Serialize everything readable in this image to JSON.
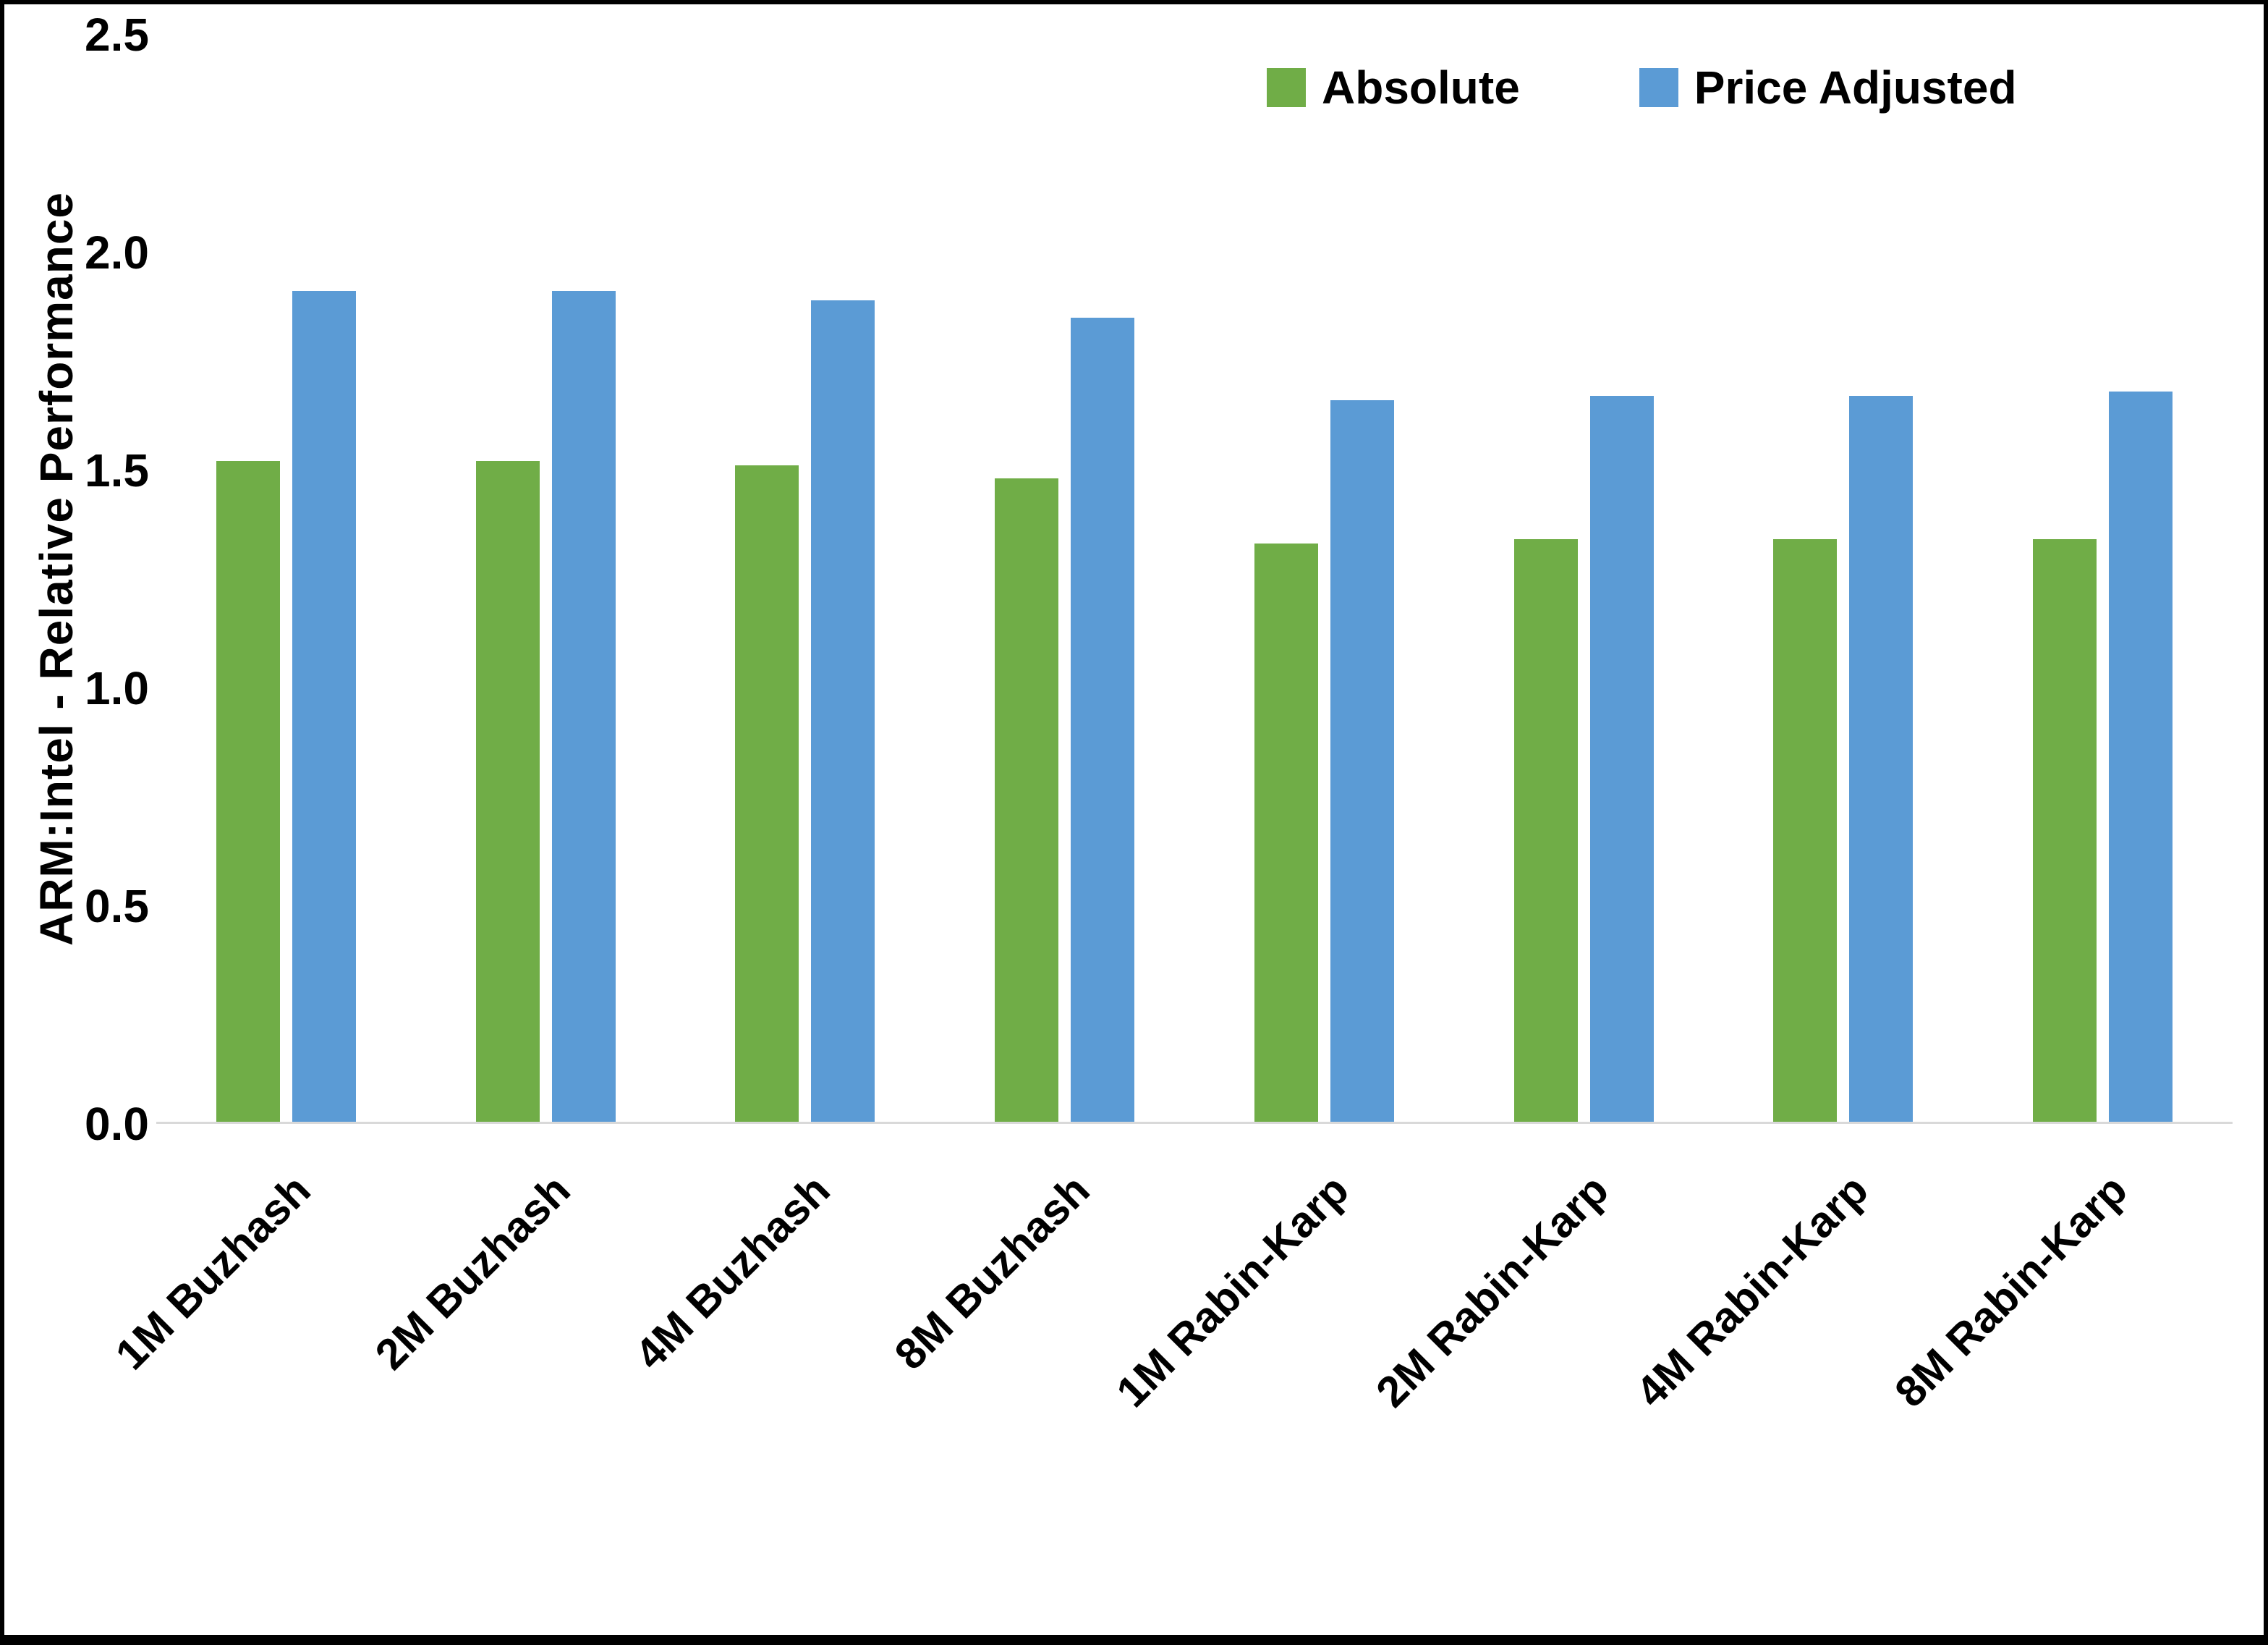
{
  "chart_data": {
    "type": "bar",
    "title": "",
    "xlabel": "",
    "ylabel": "ARM:Intel - Relative Performance",
    "ylim": [
      0,
      2.5
    ],
    "yticks": [
      "0.0",
      "0.5",
      "1.0",
      "1.5",
      "2.0",
      "2.5"
    ],
    "grid": false,
    "legend_position": "top-right",
    "categories": [
      "1M Buzhash",
      "2M Buzhash",
      "4M Buzhash",
      "8M Buzhash",
      "1M Rabin-Karp",
      "2M Rabin-Karp",
      "4M Rabin-Karp",
      "8M Rabin-Karp"
    ],
    "series": [
      {
        "name": "Absolute",
        "color": "#70AD47",
        "values": [
          1.52,
          1.52,
          1.51,
          1.48,
          1.33,
          1.34,
          1.34,
          1.34
        ]
      },
      {
        "name": "Price Adjusted",
        "color": "#5B9BD5",
        "values": [
          1.91,
          1.91,
          1.89,
          1.85,
          1.66,
          1.67,
          1.67,
          1.68
        ]
      }
    ]
  }
}
